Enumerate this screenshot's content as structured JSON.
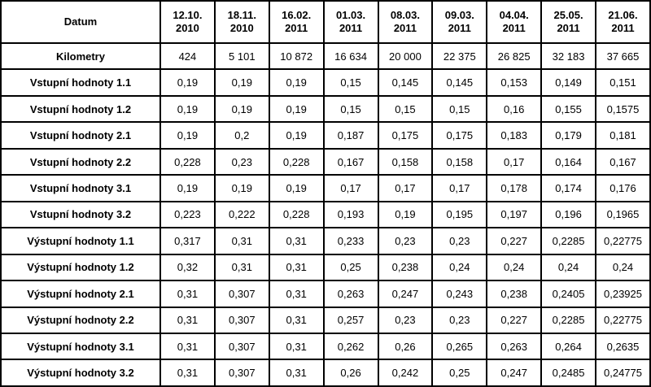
{
  "table": {
    "header": [
      "Datum",
      "12.10.\n2010",
      "18.11.\n2010",
      "16.02.\n2011",
      "01.03.\n2011",
      "08.03.\n2011",
      "09.03.\n2011",
      "04.04.\n2011",
      "25.05.\n2011",
      "21.06.\n2011"
    ],
    "rows": [
      [
        "Kilometry",
        "424",
        "5 101",
        "10 872",
        "16 634",
        "20 000",
        "22 375",
        "26 825",
        "32 183",
        "37 665"
      ],
      [
        "Vstupní hodnoty 1.1",
        "0,19",
        "0,19",
        "0,19",
        "0,15",
        "0,145",
        "0,145",
        "0,153",
        "0,149",
        "0,151"
      ],
      [
        "Vstupní hodnoty 1.2",
        "0,19",
        "0,19",
        "0,19",
        "0,15",
        "0,15",
        "0,15",
        "0,16",
        "0,155",
        "0,1575"
      ],
      [
        "Vstupní hodnoty 2.1",
        "0,19",
        "0,2",
        "0,19",
        "0,187",
        "0,175",
        "0,175",
        "0,183",
        "0,179",
        "0,181"
      ],
      [
        "Vstupní hodnoty 2.2",
        "0,228",
        "0,23",
        "0,228",
        "0,167",
        "0,158",
        "0,158",
        "0,17",
        "0,164",
        "0,167"
      ],
      [
        "Vstupní hodnoty 3.1",
        "0,19",
        "0,19",
        "0,19",
        "0,17",
        "0,17",
        "0,17",
        "0,178",
        "0,174",
        "0,176"
      ],
      [
        "Vstupní hodnoty 3.2",
        "0,223",
        "0,222",
        "0,228",
        "0,193",
        "0,19",
        "0,195",
        "0,197",
        "0,196",
        "0,1965"
      ],
      [
        "Výstupní hodnoty 1.1",
        "0,317",
        "0,31",
        "0,31",
        "0,233",
        "0,23",
        "0,23",
        "0,227",
        "0,2285",
        "0,22775"
      ],
      [
        "Výstupní hodnoty 1.2",
        "0,32",
        "0,31",
        "0,31",
        "0,25",
        "0,238",
        "0,24",
        "0,24",
        "0,24",
        "0,24"
      ],
      [
        "Výstupní hodnoty 2.1",
        "0,31",
        "0,307",
        "0,31",
        "0,263",
        "0,247",
        "0,243",
        "0,238",
        "0,2405",
        "0,23925"
      ],
      [
        "Výstupní hodnoty 2.2",
        "0,31",
        "0,307",
        "0,31",
        "0,257",
        "0,23",
        "0,23",
        "0,227",
        "0,2285",
        "0,22775"
      ],
      [
        "Výstupní hodnoty 3.1",
        "0,31",
        "0,307",
        "0,31",
        "0,262",
        "0,26",
        "0,265",
        "0,263",
        "0,264",
        "0,2635"
      ],
      [
        "Výstupní hodnoty 3.2",
        "0,31",
        "0,307",
        "0,31",
        "0,26",
        "0,242",
        "0,25",
        "0,247",
        "0,2485",
        "0,24775"
      ]
    ]
  }
}
